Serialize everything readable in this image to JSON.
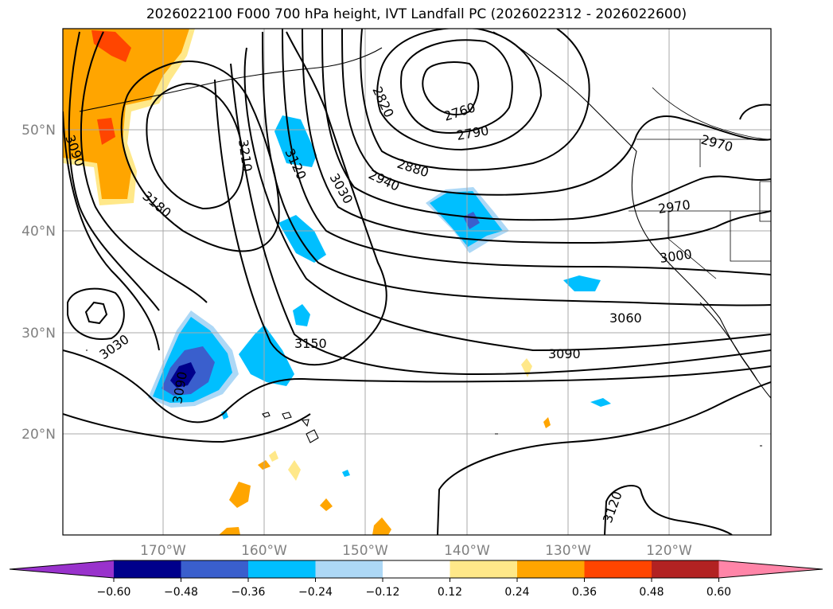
{
  "title": "2026022100 F000 700 hPa height, IVT Landfall PC (2026022312 - 2026022600)",
  "map": {
    "lat_labels": [
      "50°N",
      "40°N",
      "30°N",
      "20°N"
    ],
    "lon_labels": [
      "170°W",
      "160°W",
      "150°W",
      "140°W",
      "130°W",
      "120°W"
    ],
    "contour_labels": [
      "2760",
      "2790",
      "2820",
      "2880",
      "2940",
      "2970",
      "2970",
      "3000",
      "3030",
      "3030",
      "3060",
      "3090",
      "3090",
      "3090",
      "3120",
      "3120",
      "3150",
      "3180",
      "3210"
    ]
  },
  "colorbar": {
    "ticks": [
      "−0.60",
      "−0.48",
      "−0.36",
      "−0.24",
      "−0.12",
      "0.12",
      "0.24",
      "0.36",
      "0.48",
      "0.60"
    ],
    "colors": [
      "#9932cc",
      "#00008b",
      "#3a5fcd",
      "#00bfff",
      "#add8f6",
      "#ffffff",
      "#ffe889",
      "#ffa500",
      "#ff4500",
      "#b22222",
      "#ff85a8"
    ]
  }
}
